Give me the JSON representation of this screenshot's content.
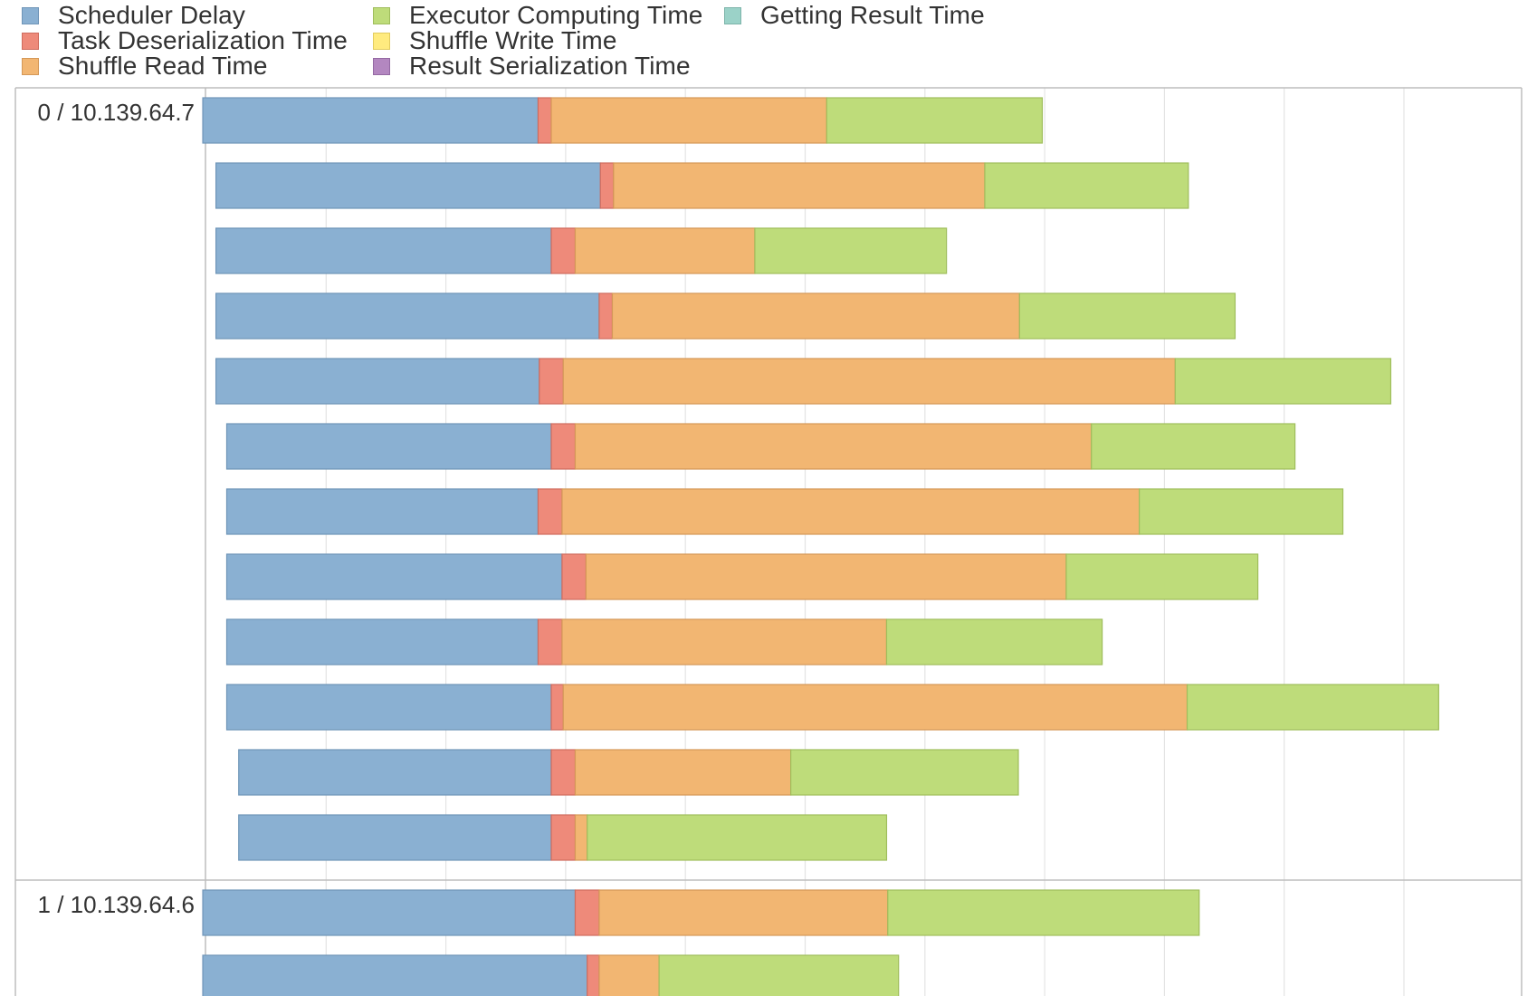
{
  "legend": [
    {
      "id": "scheduler_delay",
      "label": "Scheduler Delay",
      "fill": "#8AB0D2",
      "stroke": "#6F95B8"
    },
    {
      "id": "task_deserialization_time",
      "label": "Task Deserialization Time",
      "fill": "#EE8A7A",
      "stroke": "#CF6C5E"
    },
    {
      "id": "shuffle_read_time",
      "label": "Shuffle Read Time",
      "fill": "#F2B672",
      "stroke": "#D59858"
    },
    {
      "id": "executor_computing_time",
      "label": "Executor Computing Time",
      "fill": "#BEDC7A",
      "stroke": "#9FBD5C"
    },
    {
      "id": "shuffle_write_time",
      "label": "Shuffle Write Time",
      "fill": "#FFEB7F",
      "stroke": "#E2CC60"
    },
    {
      "id": "result_serialization_time",
      "label": "Result Serialization Time",
      "fill": "#B387C0",
      "stroke": "#9469A3"
    },
    {
      "id": "getting_result_time",
      "label": "Getting Result Time",
      "fill": "#9BD2C8",
      "stroke": "#7DB4AA"
    }
  ],
  "chart_data": {
    "type": "bar",
    "orientation": "horizontal-timeline",
    "stacked": true,
    "grid": true,
    "legend_position": "top",
    "x_domain": [
      -0.03,
      11.2
    ],
    "x_unit": "minor gridline intervals (axis tick labels not visible)",
    "groups": [
      {
        "label": "0 / 10.139.64.7",
        "tasks": [
          {
            "start": -0.03,
            "scheduler_delay": 2.8,
            "task_deserialization_time": 0.11,
            "shuffle_read_time": 2.3,
            "executor_computing_time": 1.8
          },
          {
            "start": 0.08,
            "scheduler_delay": 3.21,
            "task_deserialization_time": 0.11,
            "shuffle_read_time": 3.1,
            "executor_computing_time": 1.7
          },
          {
            "start": 0.08,
            "scheduler_delay": 2.8,
            "task_deserialization_time": 0.2,
            "shuffle_read_time": 1.5,
            "executor_computing_time": 1.6
          },
          {
            "start": 0.08,
            "scheduler_delay": 3.2,
            "task_deserialization_time": 0.11,
            "shuffle_read_time": 3.4,
            "executor_computing_time": 1.8
          },
          {
            "start": 0.08,
            "scheduler_delay": 2.7,
            "task_deserialization_time": 0.2,
            "shuffle_read_time": 5.11,
            "executor_computing_time": 1.8
          },
          {
            "start": 0.17,
            "scheduler_delay": 2.71,
            "task_deserialization_time": 0.2,
            "shuffle_read_time": 4.31,
            "executor_computing_time": 1.7
          },
          {
            "start": 0.17,
            "scheduler_delay": 2.6,
            "task_deserialization_time": 0.2,
            "shuffle_read_time": 4.82,
            "executor_computing_time": 1.7
          },
          {
            "start": 0.17,
            "scheduler_delay": 2.8,
            "task_deserialization_time": 0.2,
            "shuffle_read_time": 4.01,
            "executor_computing_time": 1.6
          },
          {
            "start": 0.17,
            "scheduler_delay": 2.6,
            "task_deserialization_time": 0.2,
            "shuffle_read_time": 2.71,
            "executor_computing_time": 1.8
          },
          {
            "start": 0.17,
            "scheduler_delay": 2.71,
            "task_deserialization_time": 0.1,
            "shuffle_read_time": 5.21,
            "executor_computing_time": 2.1
          },
          {
            "start": 0.27,
            "scheduler_delay": 2.61,
            "task_deserialization_time": 0.2,
            "shuffle_read_time": 1.8,
            "executor_computing_time": 1.9
          },
          {
            "start": 0.27,
            "scheduler_delay": 2.61,
            "task_deserialization_time": 0.2,
            "shuffle_read_time": 0.1,
            "executor_computing_time": 2.5
          }
        ]
      },
      {
        "label": "1 / 10.139.64.6",
        "tasks": [
          {
            "start": -0.03,
            "scheduler_delay": 3.11,
            "task_deserialization_time": 0.2,
            "shuffle_read_time": 2.41,
            "executor_computing_time": 2.6
          },
          {
            "start": -0.03,
            "scheduler_delay": 3.21,
            "task_deserialization_time": 0.1,
            "shuffle_read_time": 0.5,
            "executor_computing_time": 2.0
          }
        ]
      }
    ]
  }
}
